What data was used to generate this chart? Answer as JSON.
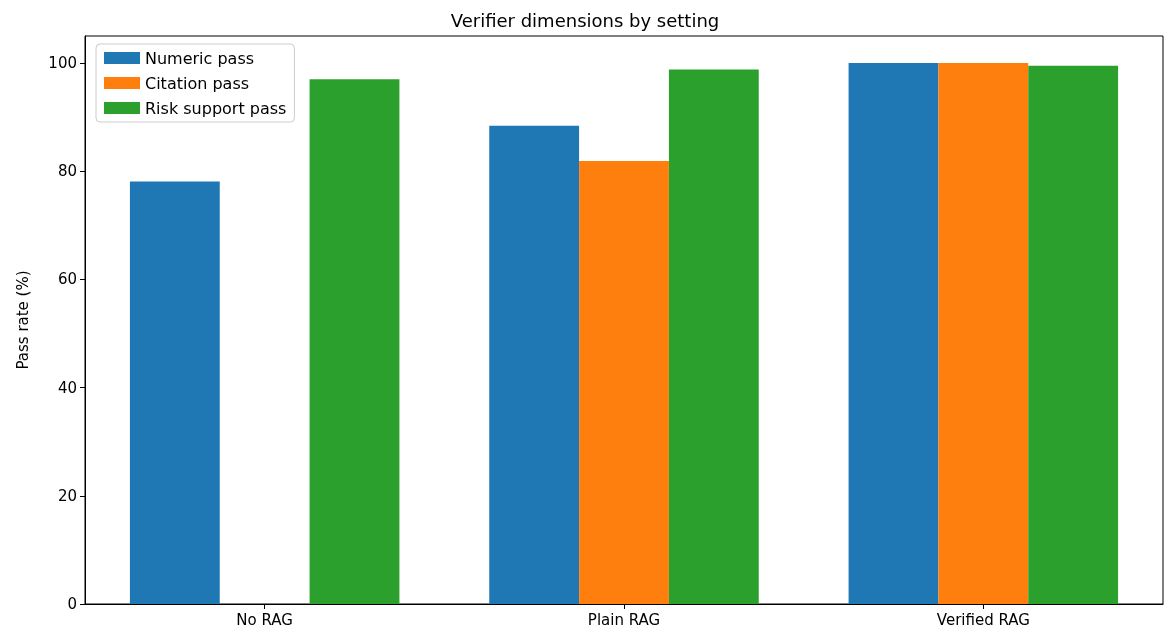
{
  "chart_data": {
    "type": "bar",
    "title": "Verifier dimensions by setting",
    "ylabel": "Pass rate (%)",
    "categories": [
      "No RAG",
      "Plain RAG",
      "Verified RAG"
    ],
    "series": [
      {
        "name": "Numeric pass",
        "color": "#1f77b4",
        "values": [
          78.1,
          88.4,
          100
        ]
      },
      {
        "name": "Citation pass",
        "color": "#ff7f0e",
        "values": [
          0,
          81.9,
          100
        ]
      },
      {
        "name": "Risk support pass",
        "color": "#2ca02c",
        "values": [
          97.0,
          98.8,
          99.5
        ]
      }
    ],
    "ylim": [
      0,
      105
    ],
    "yticks": [
      0,
      20,
      40,
      60,
      80,
      100
    ],
    "grid": false,
    "legend": "top left"
  }
}
